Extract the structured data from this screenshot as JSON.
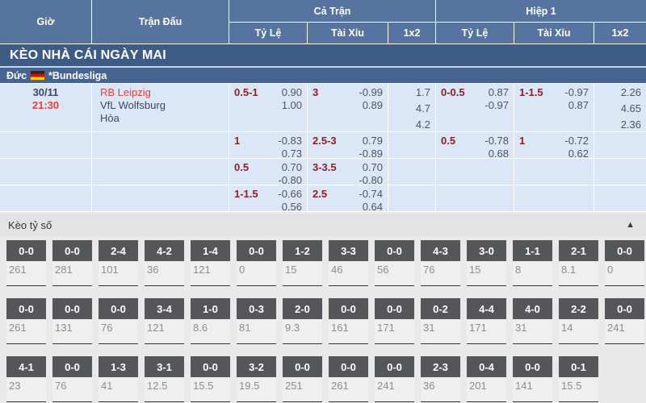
{
  "colors": {
    "header_blue": "#56749f",
    "title_blue": "#3c5c87",
    "league_blue": "#46648f",
    "row_blue": "#dbe6f7",
    "line_maroon": "#8e2025",
    "team_red": "#e04339",
    "text_navy": "#3c4960",
    "value_gray": "#4e5562",
    "badge_gray": "#55565a",
    "score_odds_gray": "#8d8d8d"
  },
  "header": {
    "time": "Giờ",
    "match": "Trận Đấu",
    "full_match": "Cả Trận",
    "first_half": "Hiệp 1",
    "subcolumns": [
      "Tỷ Lệ",
      "Tài Xỉu",
      "1x2"
    ]
  },
  "banner": {
    "title": "KÈO NHÀ CÁI NGÀY MAI"
  },
  "league": {
    "country": "Đức",
    "name": "*Bundesliga",
    "flag_icon": "germany-flag"
  },
  "odds": {
    "rows": [
      {
        "date": "30/11",
        "time": "21:30",
        "teams": [
          "RB Leipzig",
          "VfL Wolfsburg",
          "Hòa"
        ],
        "cells": [
          {
            "line": "0.5-1",
            "values": [
              "0.90",
              "1.00"
            ]
          },
          {
            "line": "3",
            "values": [
              "-0.99",
              "0.89"
            ]
          },
          {
            "values": [
              "1.7",
              "4.7",
              "4.2"
            ]
          },
          {
            "line": "0-0.5",
            "values": [
              "0.87",
              "-0.97"
            ]
          },
          {
            "line": "1-1.5",
            "values": [
              "-0.97",
              "0.87"
            ]
          },
          {
            "values": [
              "2.26",
              "4.65",
              "2.36"
            ]
          }
        ]
      },
      {
        "date": "",
        "time": "",
        "teams": [],
        "cells": [
          {
            "line": "1",
            "values": [
              "-0.83",
              "0.73"
            ]
          },
          {
            "line": "2.5-3",
            "values": [
              "0.79",
              "-0.89"
            ]
          },
          {},
          {
            "line": "0.5",
            "values": [
              "-0.78",
              "0.68"
            ]
          },
          {
            "line": "1",
            "values": [
              "-0.72",
              "0.62"
            ]
          },
          {}
        ]
      },
      {
        "date": "",
        "time": "",
        "teams": [],
        "cells": [
          {
            "line": "0.5",
            "values": [
              "0.70",
              "-0.80"
            ]
          },
          {
            "line": "3-3.5",
            "values": [
              "0.70",
              "-0.80"
            ]
          },
          {},
          {},
          {},
          {}
        ]
      },
      {
        "date": "",
        "time": "",
        "teams": [],
        "cells": [
          {
            "line": "1-1.5",
            "values": [
              "-0.66",
              "0.56"
            ]
          },
          {
            "line": "2.5",
            "values": [
              "-0.74",
              "0.64"
            ]
          },
          {},
          {},
          {},
          {}
        ]
      }
    ]
  },
  "score_board": {
    "title": "Kèo tỷ số",
    "collapse_icon": "chevron-up",
    "rows": [
      [
        {
          "score": "0-0",
          "odds": "261"
        },
        {
          "score": "0-0",
          "odds": "281"
        },
        {
          "score": "2-4",
          "odds": "101"
        },
        {
          "score": "4-2",
          "odds": "36"
        },
        {
          "score": "1-4",
          "odds": "121"
        },
        {
          "score": "0-0",
          "odds": "0"
        },
        {
          "score": "1-2",
          "odds": "15"
        },
        {
          "score": "3-3",
          "odds": "46"
        },
        {
          "score": "0-0",
          "odds": "56"
        },
        {
          "score": "4-3",
          "odds": "76"
        },
        {
          "score": "3-0",
          "odds": "15"
        },
        {
          "score": "1-1",
          "odds": "8"
        },
        {
          "score": "2-1",
          "odds": "8.1"
        },
        {
          "score": "0-0",
          "odds": "0"
        }
      ],
      [
        {
          "score": "0-0",
          "odds": "261"
        },
        {
          "score": "0-0",
          "odds": "131"
        },
        {
          "score": "0-0",
          "odds": "76"
        },
        {
          "score": "3-4",
          "odds": "121"
        },
        {
          "score": "1-0",
          "odds": "8.6"
        },
        {
          "score": "0-3",
          "odds": "81"
        },
        {
          "score": "2-0",
          "odds": "9.3"
        },
        {
          "score": "0-0",
          "odds": "161"
        },
        {
          "score": "0-0",
          "odds": "171"
        },
        {
          "score": "0-2",
          "odds": "31"
        },
        {
          "score": "4-4",
          "odds": "171"
        },
        {
          "score": "4-0",
          "odds": "31"
        },
        {
          "score": "2-2",
          "odds": "14"
        },
        {
          "score": "0-0",
          "odds": "241"
        }
      ],
      [
        {
          "score": "4-1",
          "odds": "23"
        },
        {
          "score": "0-0",
          "odds": "76"
        },
        {
          "score": "1-3",
          "odds": "41"
        },
        {
          "score": "3-1",
          "odds": "12.5"
        },
        {
          "score": "0-0",
          "odds": "15.5"
        },
        {
          "score": "3-2",
          "odds": "19.5"
        },
        {
          "score": "0-0",
          "odds": "251"
        },
        {
          "score": "0-0",
          "odds": "261"
        },
        {
          "score": "0-0",
          "odds": "241"
        },
        {
          "score": "2-3",
          "odds": "36"
        },
        {
          "score": "0-4",
          "odds": "201"
        },
        {
          "score": "0-0",
          "odds": "141"
        },
        {
          "score": "0-1",
          "odds": "15.5"
        }
      ]
    ]
  }
}
